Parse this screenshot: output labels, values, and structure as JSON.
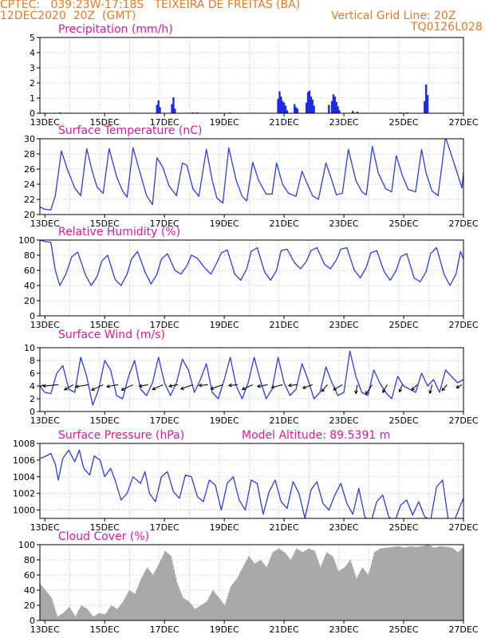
{
  "header": {
    "line1": "CPTEC:   039:23W-17:18S   TEIXEIRA DE FREITAS (BA)",
    "line2": "12DEC2020  20Z  (GMT)",
    "grid_note": "Vertical Grid Line: 20Z",
    "code": "TQ0126L028"
  },
  "x_axis": {
    "start_day": 12.8333,
    "end_day": 27.0,
    "tick_days": [
      13,
      15,
      17,
      19,
      21,
      23,
      25,
      27
    ],
    "tick_labels": [
      "13DEC",
      "15DEC",
      "17DEC",
      "19DEC",
      "21DEC",
      "23DEC",
      "25DEC",
      "27DEC"
    ],
    "grid_days": [
      12.8333,
      13.8333,
      14.8333,
      15.8333,
      16.8333,
      17.8333,
      18.8333,
      19.8333,
      20.8333,
      21.8333,
      22.8333,
      23.8333,
      24.8333,
      25.8333,
      26.8333
    ]
  },
  "colors": {
    "title": "#e0179a",
    "header": "#e07b2a",
    "line": "#2b3ee0",
    "bar": "#1c2be8",
    "cloud": "#a8a8a8",
    "wind": "#000000"
  },
  "chart_data": [
    {
      "type": "bar",
      "title": "Precipitation  (mm/h)",
      "ylim": [
        0,
        5
      ],
      "yticks": [
        0,
        1,
        2,
        3,
        4,
        5
      ],
      "x": [
        13.5,
        16.75,
        16.8,
        16.85,
        17.25,
        17.3,
        17.35,
        17.95,
        18.1,
        19.2,
        20.8,
        20.85,
        20.9,
        20.95,
        21.0,
        21.05,
        21.1,
        21.35,
        21.4,
        21.45,
        21.75,
        21.8,
        21.85,
        21.9,
        21.95,
        22.0,
        22.5,
        22.6,
        22.65,
        22.7,
        22.75,
        22.8,
        22.85,
        23.3,
        23.45,
        24.9,
        25.1,
        25.7,
        25.75,
        25.8
      ],
      "values": [
        0.05,
        0.55,
        0.85,
        0.4,
        0.6,
        1.05,
        0.3,
        0.05,
        0.05,
        0.05,
        0.95,
        1.45,
        1.1,
        0.8,
        0.7,
        0.5,
        0.2,
        0.6,
        0.4,
        0.3,
        0.7,
        1.4,
        1.5,
        1.1,
        0.9,
        0.5,
        0.55,
        0.8,
        1.25,
        1.1,
        0.75,
        0.45,
        0.2,
        0.15,
        0.1,
        0.05,
        0.05,
        0.8,
        1.9,
        1.2
      ]
    },
    {
      "type": "line",
      "title": "Surface Temperature  (nC)",
      "ylim": [
        20,
        30
      ],
      "yticks": [
        20,
        22,
        24,
        26,
        28,
        30
      ],
      "x": [
        12.8333,
        13.0,
        13.2,
        13.35,
        13.55,
        13.75,
        14.0,
        14.2,
        14.4,
        14.6,
        14.75,
        14.95,
        15.15,
        15.4,
        15.6,
        15.75,
        15.95,
        16.15,
        16.4,
        16.6,
        16.75,
        16.95,
        17.15,
        17.4,
        17.6,
        17.75,
        17.95,
        18.15,
        18.4,
        18.6,
        18.75,
        18.95,
        19.15,
        19.4,
        19.6,
        19.75,
        19.95,
        20.15,
        20.4,
        20.6,
        20.75,
        20.95,
        21.15,
        21.4,
        21.6,
        21.75,
        21.95,
        22.15,
        22.4,
        22.6,
        22.75,
        22.95,
        23.15,
        23.4,
        23.6,
        23.75,
        23.95,
        24.15,
        24.4,
        24.6,
        24.75,
        24.95,
        25.15,
        25.4,
        25.6,
        25.75,
        25.95,
        26.15,
        26.4,
        26.6,
        26.75,
        26.95,
        27.0
      ],
      "values": [
        21.0,
        20.7,
        20.6,
        22.5,
        28.4,
        26.0,
        23.5,
        22.5,
        28.7,
        25.5,
        23.6,
        22.8,
        28.7,
        25.0,
        23.1,
        22.3,
        28.8,
        26.0,
        22.5,
        21.3,
        27.5,
        26.2,
        23.8,
        22.5,
        26.8,
        26.5,
        23.4,
        22.4,
        28.6,
        24.5,
        22.2,
        21.5,
        28.8,
        24.5,
        22.4,
        21.8,
        26.9,
        24.5,
        22.7,
        22.7,
        26.8,
        24.0,
        22.8,
        22.4,
        25.7,
        24.3,
        22.5,
        22.0,
        26.8,
        24.5,
        22.6,
        22.8,
        28.6,
        24.5,
        23.0,
        22.6,
        29.0,
        25.5,
        23.4,
        23.0,
        27.8,
        25.2,
        23.3,
        23.0,
        28.6,
        25.5,
        23.1,
        22.5,
        30.2,
        27.8,
        26.0,
        23.5,
        25.6
      ]
    },
    {
      "type": "line",
      "title": "Relative Humidity  (%)",
      "ylim": [
        0,
        100
      ],
      "yticks": [
        0,
        20,
        40,
        60,
        80,
        100
      ],
      "x": [
        12.8333,
        13.0,
        13.2,
        13.35,
        13.5,
        13.7,
        13.9,
        14.1,
        14.35,
        14.55,
        14.75,
        14.9,
        15.1,
        15.35,
        15.55,
        15.75,
        15.9,
        16.1,
        16.35,
        16.55,
        16.75,
        16.9,
        17.1,
        17.35,
        17.55,
        17.75,
        17.9,
        18.1,
        18.35,
        18.55,
        18.75,
        18.9,
        19.1,
        19.35,
        19.55,
        19.75,
        19.9,
        20.1,
        20.35,
        20.55,
        20.75,
        20.9,
        21.1,
        21.35,
        21.55,
        21.75,
        21.9,
        22.1,
        22.35,
        22.55,
        22.75,
        22.9,
        23.1,
        23.35,
        23.55,
        23.75,
        23.9,
        24.1,
        24.35,
        24.55,
        24.75,
        24.9,
        25.1,
        25.35,
        25.55,
        25.75,
        25.9,
        26.1,
        26.35,
        26.55,
        26.75,
        26.9,
        27.0
      ],
      "values": [
        100,
        98,
        97,
        60,
        40,
        55,
        78,
        84,
        55,
        40,
        52,
        72,
        80,
        48,
        40,
        55,
        75,
        85,
        58,
        42,
        55,
        75,
        82,
        60,
        55,
        66,
        80,
        76,
        63,
        55,
        70,
        83,
        87,
        55,
        47,
        62,
        85,
        90,
        58,
        47,
        60,
        86,
        88,
        70,
        62,
        72,
        86,
        90,
        68,
        62,
        74,
        88,
        90,
        60,
        50,
        64,
        83,
        86,
        58,
        47,
        60,
        78,
        82,
        50,
        45,
        58,
        82,
        90,
        55,
        40,
        55,
        85,
        75
      ]
    },
    {
      "type": "line",
      "title": "Surface  Wind  (m/s)",
      "ylim": [
        0,
        10
      ],
      "yticks": [
        0,
        2,
        4,
        6,
        8,
        10
      ],
      "x": [
        12.8333,
        13.0,
        13.2,
        13.4,
        13.6,
        13.8,
        14.0,
        14.2,
        14.4,
        14.6,
        14.8,
        15.0,
        15.2,
        15.4,
        15.6,
        15.8,
        16.0,
        16.2,
        16.4,
        16.6,
        16.8,
        17.0,
        17.2,
        17.4,
        17.6,
        17.8,
        18.0,
        18.2,
        18.4,
        18.6,
        18.8,
        19.0,
        19.2,
        19.4,
        19.6,
        19.8,
        20.0,
        20.2,
        20.4,
        20.6,
        20.8,
        21.0,
        21.2,
        21.4,
        21.6,
        21.8,
        22.0,
        22.2,
        22.4,
        22.6,
        22.8,
        23.0,
        23.2,
        23.4,
        23.6,
        23.8,
        24.0,
        24.2,
        24.4,
        24.6,
        24.8,
        25.0,
        25.2,
        25.4,
        25.6,
        25.8,
        26.0,
        26.2,
        26.4,
        26.6,
        26.8,
        27.0
      ],
      "values": [
        4.0,
        3.0,
        2.8,
        6.0,
        7.2,
        3.5,
        3.0,
        8.5,
        5.5,
        1.0,
        3.5,
        8.0,
        6.5,
        2.5,
        2.0,
        5.5,
        8.0,
        3.5,
        2.5,
        4.5,
        8.5,
        4.5,
        2.5,
        4.5,
        8.2,
        6.5,
        3.0,
        5.0,
        7.5,
        3.0,
        2.0,
        5.0,
        8.5,
        4.0,
        2.0,
        4.5,
        8.5,
        5.0,
        2.0,
        3.5,
        8.5,
        4.5,
        2.5,
        3.5,
        7.5,
        5.0,
        2.0,
        3.0,
        7.0,
        4.5,
        2.5,
        3.0,
        9.5,
        5.5,
        3.0,
        2.5,
        6.5,
        4.5,
        3.0,
        2.0,
        5.5,
        4.0,
        3.5,
        3.0,
        6.0,
        4.0,
        5.0,
        3.0,
        6.5,
        5.5,
        4.5,
        5.0
      ],
      "vectors": {
        "x": [
          12.95,
          13.45,
          13.95,
          14.45,
          14.95,
          15.45,
          15.95,
          16.45,
          16.95,
          17.45,
          17.95,
          18.45,
          18.95,
          19.45,
          19.95,
          20.45,
          20.95,
          21.45,
          21.95,
          22.45,
          22.95,
          23.45,
          23.95,
          24.45,
          24.95,
          25.45,
          25.95,
          26.45,
          26.95
        ],
        "speed": [
          4.0,
          6.0,
          4.0,
          5.0,
          5.0,
          4.5,
          5.0,
          3.5,
          4.5,
          3.5,
          5.0,
          3.5,
          5.0,
          3.5,
          4.5,
          4.0,
          4.5,
          3.5,
          4.0,
          3.5,
          4.0,
          3.5,
          4.5,
          3.5,
          3.0,
          3.0,
          3.5,
          3.0,
          2.5
        ],
        "direction_deg": [
          60,
          85,
          60,
          80,
          65,
          80,
          65,
          80,
          65,
          80,
          70,
          85,
          70,
          85,
          65,
          80,
          75,
          85,
          70,
          40,
          60,
          10,
          35,
          30,
          20,
          45,
          15,
          40,
          60
        ]
      }
    },
    {
      "type": "line",
      "title": "Surface  Pressure  (hPa)",
      "subtitle": "Model Altitude:  89.5391  m",
      "ylim": [
        999,
        1008
      ],
      "yticks": [
        1000,
        1002,
        1004,
        1006,
        1008
      ],
      "x": [
        12.8333,
        13.0,
        13.2,
        13.35,
        13.45,
        13.6,
        13.8,
        14.0,
        14.15,
        14.3,
        14.5,
        14.65,
        14.85,
        15.0,
        15.2,
        15.35,
        15.55,
        15.75,
        15.95,
        16.2,
        16.35,
        16.5,
        16.7,
        16.9,
        17.1,
        17.3,
        17.5,
        17.7,
        17.9,
        18.1,
        18.3,
        18.5,
        18.7,
        18.9,
        19.1,
        19.3,
        19.5,
        19.7,
        19.9,
        20.1,
        20.3,
        20.5,
        20.7,
        20.9,
        21.1,
        21.3,
        21.5,
        21.7,
        21.9,
        22.1,
        22.3,
        22.5,
        22.7,
        22.9,
        23.1,
        23.3,
        23.5,
        23.7,
        23.9,
        24.1,
        24.3,
        24.5,
        24.7,
        24.9,
        25.1,
        25.3,
        25.5,
        25.7,
        25.9,
        26.1,
        26.3,
        26.5,
        26.7,
        26.9,
        27.0
      ],
      "values": [
        1006.2,
        1006.4,
        1006.8,
        1005.5,
        1003.6,
        1006.2,
        1007.2,
        1005.8,
        1007.2,
        1005.0,
        1004.2,
        1006.5,
        1006.0,
        1004.0,
        1005.0,
        1003.6,
        1001.2,
        1002.0,
        1004.0,
        1003.2,
        1004.6,
        1002.0,
        1001.0,
        1004.0,
        1004.6,
        1002.2,
        1001.4,
        1004.2,
        1004.0,
        1001.6,
        1001.0,
        1003.6,
        1003.0,
        1000.0,
        1003.2,
        1004.0,
        1001.2,
        1000.0,
        1003.6,
        1003.2,
        999.5,
        1002.2,
        1003.6,
        1001.0,
        1000.2,
        1003.4,
        1002.0,
        999.0,
        1002.4,
        1003.4,
        1000.8,
        1000.0,
        1001.8,
        1003.2,
        1000.8,
        999.5,
        1002.6,
        999.2,
        998.5,
        1001.0,
        1001.8,
        999.2,
        998.6,
        1000.6,
        1001.2,
        999.4,
        1001.0,
        999.2,
        998.8,
        1002.8,
        1003.6,
        998.6,
        998.8,
        1000.6,
        1001.4
      ]
    },
    {
      "type": "area",
      "title": "Cloud  Cover  (%)",
      "ylim": [
        0,
        100
      ],
      "yticks": [
        0,
        20,
        40,
        60,
        80,
        100
      ],
      "x": [
        12.8333,
        13.0,
        13.2,
        13.4,
        13.6,
        13.8,
        14.0,
        14.2,
        14.4,
        14.6,
        14.8,
        15.0,
        15.2,
        15.4,
        15.6,
        15.8,
        16.0,
        16.2,
        16.4,
        16.6,
        16.8,
        17.0,
        17.2,
        17.4,
        17.6,
        17.8,
        18.0,
        18.2,
        18.4,
        18.6,
        18.8,
        19.0,
        19.2,
        19.4,
        19.6,
        19.8,
        20.0,
        20.2,
        20.4,
        20.6,
        20.8,
        21.0,
        21.2,
        21.4,
        21.6,
        21.8,
        22.0,
        22.2,
        22.4,
        22.6,
        22.8,
        23.0,
        23.2,
        23.4,
        23.6,
        23.8,
        24.0,
        24.2,
        24.4,
        24.6,
        24.8,
        25.0,
        25.2,
        25.4,
        25.6,
        25.8,
        26.0,
        26.2,
        26.4,
        26.6,
        26.8,
        27.0
      ],
      "values": [
        48,
        40,
        30,
        5,
        10,
        18,
        5,
        20,
        15,
        5,
        10,
        8,
        20,
        15,
        25,
        40,
        35,
        55,
        70,
        60,
        75,
        92,
        85,
        50,
        30,
        25,
        15,
        20,
        25,
        40,
        30,
        20,
        45,
        55,
        70,
        85,
        75,
        80,
        70,
        90,
        95,
        90,
        80,
        95,
        90,
        95,
        92,
        70,
        90,
        85,
        65,
        70,
        80,
        55,
        70,
        60,
        90,
        95,
        96,
        97,
        98,
        96,
        98,
        97,
        98,
        100,
        96,
        98,
        97,
        96,
        90,
        98
      ]
    }
  ]
}
